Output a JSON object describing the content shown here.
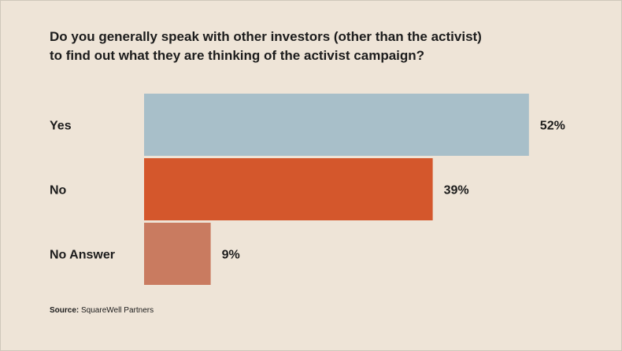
{
  "chart_data": {
    "type": "bar",
    "orientation": "horizontal",
    "title_lines": [
      "Do you generally speak with other investors (other than the activist)",
      "to find out what they are thinking of the activist campaign?"
    ],
    "categories": [
      "Yes",
      "No",
      "No Answer"
    ],
    "values": [
      52,
      39,
      9
    ],
    "value_labels": [
      "52%",
      "39%",
      "9%"
    ],
    "unit": "%",
    "colors": [
      "#a8bfc9",
      "#d4572c",
      "#c97b60"
    ],
    "xlim": [
      0,
      100
    ],
    "grid": false,
    "legend": "none"
  },
  "source": {
    "label": "Source:",
    "text": "SquareWell Partners"
  }
}
